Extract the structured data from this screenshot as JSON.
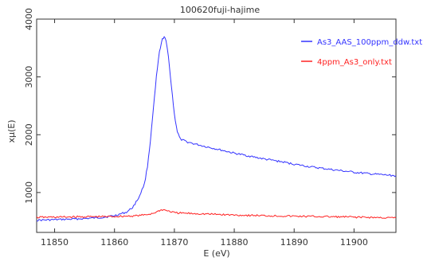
{
  "chart_data": {
    "type": "line",
    "title": "100620fuji-hajime",
    "xlabel": "E (eV)",
    "ylabel": "xμ(E)",
    "xlim": [
      11847,
      11907
    ],
    "ylim": [
      310,
      4000
    ],
    "x_ticks": [
      11850,
      11860,
      11870,
      11880,
      11890,
      11900
    ],
    "y_ticks": [
      1000,
      2000,
      3000,
      4000
    ],
    "grid": false,
    "legend_position": "top-right",
    "series": [
      {
        "name": "As3_AAS_100ppm_ddw.txt",
        "color": "#3333ff",
        "x": [
          11847,
          11850,
          11853,
          11856,
          11858,
          11860,
          11862,
          11863,
          11864,
          11865,
          11865.5,
          11866,
          11866.5,
          11867,
          11867.5,
          11868,
          11868.3,
          11868.6,
          11869,
          11869.5,
          11870,
          11870.5,
          11871,
          11872,
          11873,
          11875,
          11878,
          11880,
          11882,
          11885,
          11888,
          11890,
          11893,
          11896,
          11900,
          11903,
          11907
        ],
        "y": [
          520,
          530,
          540,
          555,
          570,
          600,
          660,
          740,
          900,
          1150,
          1450,
          1900,
          2450,
          3000,
          3430,
          3650,
          3700,
          3620,
          3350,
          2850,
          2350,
          2050,
          1920,
          1880,
          1850,
          1800,
          1730,
          1680,
          1640,
          1580,
          1530,
          1490,
          1440,
          1400,
          1350,
          1320,
          1290
        ]
      },
      {
        "name": "4ppm_As3_only.txt",
        "color": "#ff2222",
        "x": [
          11847,
          11850,
          11855,
          11860,
          11863,
          11865,
          11866,
          11867,
          11867.5,
          11868,
          11868.5,
          11869,
          11869.5,
          11870,
          11872,
          11875,
          11880,
          11890,
          11900,
          11907
        ],
        "y": [
          570,
          575,
          580,
          585,
          595,
          610,
          630,
          660,
          690,
          700,
          695,
          680,
          665,
          650,
          640,
          630,
          610,
          590,
          575,
          560
        ]
      }
    ]
  }
}
